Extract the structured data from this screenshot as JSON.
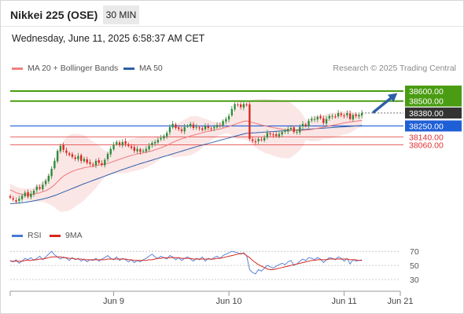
{
  "header": {
    "title": "Nikkei 225 (OSE)",
    "timeframe": "30 MIN",
    "datetime": "Wednesday, June 11, 2025 6:58:37 AM CET"
  },
  "price_legend": {
    "ma20": {
      "label": "MA 20 + Bollinger Bands",
      "color": "#f08080"
    },
    "ma50": {
      "label": "MA 50",
      "color": "#2d5fa8"
    },
    "credit": "Research © 2025 Trading Central"
  },
  "rsi_legend": {
    "rsi": {
      "label": "RSI",
      "color": "#4a78d6"
    },
    "ma9": {
      "label": "9MA",
      "color": "#d9261c"
    }
  },
  "chart_data": [
    {
      "type": "candlestick",
      "title": "Nikkei 225 (OSE)",
      "x_axis": {
        "ticks": [
          "Jun 9",
          "Jun 10",
          "Jun 11",
          "Jun 21"
        ],
        "range": [
          0,
          132
        ]
      },
      "y_axis": {
        "min": 37300,
        "max": 38750
      },
      "levels": [
        {
          "value": 38600,
          "label": "38600.00",
          "kind": "resistance",
          "color": "#4a9c12"
        },
        {
          "value": 38500,
          "label": "38500.00",
          "kind": "resistance",
          "color": "#4a9c12"
        },
        {
          "value": 38380,
          "label": "38380.00",
          "kind": "last",
          "color": "#333333"
        },
        {
          "value": 38250,
          "label": "38250.00",
          "kind": "pivot",
          "color": "#1f5fd6"
        },
        {
          "value": 38140,
          "label": "38140.00",
          "kind": "support",
          "color": "#e03030"
        },
        {
          "value": 38060,
          "label": "38060.00",
          "kind": "support",
          "color": "#e03030"
        }
      ],
      "target_arrow": {
        "from": {
          "x": 123,
          "y": 38390
        },
        "to": {
          "x": 131,
          "y": 38580
        }
      },
      "closes": [
        37530,
        37510,
        37490,
        37520,
        37550,
        37580,
        37540,
        37570,
        37600,
        37640,
        37620,
        37660,
        37700,
        37750,
        37820,
        37900,
        38000,
        38050,
        38010,
        37980,
        37960,
        37940,
        37920,
        37950,
        37900,
        37920,
        37880,
        37870,
        37860,
        37900,
        37880,
        37860,
        37910,
        37970,
        38020,
        38060,
        38090,
        38060,
        38090,
        38070,
        38050,
        38030,
        38000,
        38020,
        37990,
        38000,
        38020,
        38050,
        38080,
        38090,
        38110,
        38130,
        38150,
        38180,
        38240,
        38270,
        38230,
        38220,
        38200,
        38240,
        38250,
        38270,
        38230,
        38240,
        38230,
        38210,
        38250,
        38230,
        38220,
        38240,
        38260,
        38250,
        38300,
        38320,
        38350,
        38420,
        38470,
        38460,
        38440,
        38470,
        38460,
        38120,
        38100,
        38090,
        38120,
        38110,
        38130,
        38180,
        38170,
        38160,
        38150,
        38170,
        38190,
        38200,
        38220,
        38230,
        38190,
        38190,
        38240,
        38270,
        38250,
        38300,
        38320,
        38320,
        38340,
        38330,
        38280,
        38320,
        38350,
        38350,
        38340,
        38380,
        38360,
        38350,
        38380,
        38320,
        38360,
        38350,
        38360,
        38380
      ],
      "ma20": [
        37610,
        37595,
        37580,
        37570,
        37565,
        37560,
        37560,
        37562,
        37566,
        37572,
        37580,
        37590,
        37600,
        37615,
        37635,
        37660,
        37690,
        37720,
        37745,
        37765,
        37780,
        37795,
        37805,
        37815,
        37822,
        37830,
        37836,
        37840,
        37845,
        37852,
        37858,
        37862,
        37868,
        37875,
        37884,
        37894,
        37905,
        37915,
        37925,
        37935,
        37945,
        37955,
        37962,
        37970,
        37975,
        37980,
        37986,
        37993,
        38000,
        38010,
        38020,
        38030,
        38042,
        38055,
        38070,
        38085,
        38098,
        38110,
        38120,
        38130,
        38140,
        38150,
        38158,
        38166,
        38174,
        38182,
        38190,
        38196,
        38202,
        38208,
        38214,
        38220,
        38228,
        38236,
        38245,
        38255,
        38266,
        38276,
        38286,
        38296,
        38300,
        38292,
        38284,
        38276,
        38268,
        38260,
        38253,
        38246,
        38240,
        38234,
        38228,
        38223,
        38218,
        38214,
        38211,
        38208,
        38206,
        38205,
        38205,
        38206,
        38208,
        38211,
        38215,
        38220,
        38226,
        38232,
        38238,
        38244,
        38250,
        38256,
        38262,
        38268,
        38274,
        38280,
        38286,
        38290,
        38294,
        38298,
        38302,
        38306
      ],
      "ma50": [
        37470,
        37472,
        37474,
        37477,
        37480,
        37484,
        37488,
        37493,
        37498,
        37504,
        37510,
        37517,
        37524,
        37532,
        37541,
        37551,
        37562,
        37574,
        37586,
        37598,
        37610,
        37622,
        37634,
        37646,
        37658,
        37670,
        37681,
        37692,
        37703,
        37714,
        37725,
        37736,
        37747,
        37758,
        37769,
        37780,
        37791,
        37802,
        37812,
        37822,
        37832,
        37842,
        37852,
        37862,
        37871,
        37880,
        37889,
        37898,
        37907,
        37916,
        37925,
        37934,
        37943,
        37952,
        37961,
        37970,
        37979,
        37988,
        37997,
        38006,
        38015,
        38024,
        38033,
        38042,
        38050,
        38058,
        38066,
        38074,
        38082,
        38090,
        38098,
        38106,
        38114,
        38122,
        38130,
        38138,
        38146,
        38154,
        38162,
        38170,
        38176,
        38178,
        38180,
        38182,
        38184,
        38186,
        38188,
        38190,
        38192,
        38194,
        38196,
        38198,
        38200,
        38202,
        38204,
        38206,
        38208,
        38210,
        38212,
        38214,
        38216,
        38218,
        38220,
        38222,
        38224,
        38226,
        38228,
        38230,
        38232,
        38234,
        38236,
        38238,
        38240,
        38242,
        38244,
        38246,
        38248,
        38250,
        38252,
        38254
      ]
    },
    {
      "type": "line",
      "title": "RSI",
      "y_axis": {
        "min": 20,
        "max": 78,
        "ticks": [
          70,
          50,
          30
        ]
      },
      "rsi": [
        57,
        55,
        58,
        53,
        56,
        60,
        58,
        61,
        57,
        60,
        63,
        58,
        62,
        66,
        70,
        65,
        62,
        59,
        62,
        60,
        57,
        61,
        58,
        60,
        56,
        59,
        55,
        58,
        57,
        60,
        56,
        59,
        61,
        64,
        60,
        58,
        62,
        57,
        60,
        58,
        55,
        58,
        54,
        57,
        55,
        58,
        60,
        63,
        66,
        62,
        60,
        63,
        61,
        59,
        64,
        62,
        58,
        61,
        57,
        60,
        62,
        59,
        56,
        60,
        58,
        62,
        56,
        60,
        58,
        61,
        63,
        60,
        64,
        66,
        68,
        70,
        69,
        68,
        66,
        68,
        64,
        44,
        40,
        38,
        44,
        42,
        46,
        50,
        48,
        46,
        49,
        51,
        53,
        51,
        55,
        57,
        50,
        52,
        56,
        59,
        57,
        61,
        60,
        58,
        61,
        59,
        54,
        58,
        61,
        60,
        58,
        62,
        60,
        56,
        60,
        52,
        58,
        56,
        57,
        58
      ],
      "ma9": [
        56,
        56,
        56,
        56,
        56,
        57,
        57,
        57,
        58,
        58,
        59,
        59,
        60,
        61,
        62,
        62,
        62,
        62,
        61,
        61,
        60,
        60,
        59,
        59,
        59,
        58,
        58,
        58,
        58,
        58,
        58,
        58,
        58,
        59,
        59,
        59,
        59,
        59,
        59,
        59,
        58,
        58,
        57,
        57,
        57,
        57,
        57,
        58,
        58,
        59,
        60,
        60,
        61,
        61,
        61,
        61,
        61,
        61,
        60,
        60,
        60,
        60,
        59,
        59,
        59,
        59,
        59,
        59,
        59,
        59,
        60,
        60,
        61,
        62,
        63,
        64,
        65,
        66,
        67,
        67,
        64,
        61,
        57,
        54,
        51,
        49,
        47,
        45,
        44,
        44,
        45,
        46,
        47,
        48,
        49,
        50,
        51,
        52,
        53,
        54,
        55,
        56,
        57,
        57,
        58,
        58,
        58,
        58,
        59,
        59,
        59,
        59,
        59,
        59,
        59,
        58,
        58,
        58,
        57,
        57
      ]
    }
  ]
}
